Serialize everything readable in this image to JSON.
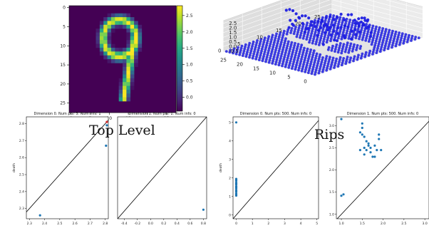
{
  "captions": {
    "left": "Top Level",
    "right": "Rips"
  },
  "heatmap": {
    "type": "heatmap",
    "xticks": [
      "0",
      "5",
      "10",
      "15",
      "20",
      "25"
    ],
    "yticks": [
      "0",
      "5",
      "10",
      "15",
      "20",
      "25"
    ],
    "colorbar_ticks": [
      "2.5",
      "2.0",
      "1.5",
      "1.0",
      "0.5",
      "0.0",
      "-0.5"
    ],
    "colorbar_values": [
      2.5,
      2.0,
      1.5,
      1.0,
      0.5,
      0.0,
      -0.5
    ],
    "vmin": -0.42,
    "vmax": 2.8,
    "background_value": -0.42,
    "grid_size": 28,
    "colormap": "viridis"
  },
  "scatter3d": {
    "type": "scatter",
    "x_ticks": [
      "0",
      "5",
      "10",
      "15",
      "20",
      "25"
    ],
    "y_ticks": [
      "0",
      "5",
      "10",
      "15",
      "20",
      "25"
    ],
    "z_ticks": [
      "2.5",
      "2.0",
      "1.5",
      "1.0",
      "0.5",
      "0.0",
      "-0.5"
    ],
    "point_color": "#1f1fe0"
  },
  "chart_data": [
    {
      "type": "scatter",
      "title": "Dimension 0. Num pts: 3. Num infs: 1",
      "ylabel": "death",
      "xticks": [
        "2.3",
        "2.4",
        "2.5",
        "2.6",
        "2.7",
        "2.8"
      ],
      "yticks": [
        "2.8",
        "2.7",
        "2.6",
        "2.5",
        "2.4",
        "2.3"
      ],
      "xlim": [
        2.28,
        2.82
      ],
      "ylim": [
        2.24,
        2.84
      ],
      "points": [
        [
          2.37,
          2.26
        ],
        [
          2.805,
          2.67
        ],
        [
          2.81,
          2.79
        ]
      ],
      "infinite_points": [
        [
          2.81,
          2.81
        ]
      ],
      "point_color": "#1f77b4",
      "inf_color": "#d62728"
    },
    {
      "type": "scatter",
      "title": "Dimension 1. Num pts: 1. Num infs: 0",
      "xticks": [
        "-0.4",
        "-0.2",
        "0.0",
        "0.2",
        "0.4",
        "0.6",
        "0.8"
      ],
      "xlim": [
        -0.5,
        0.85
      ],
      "ylim": [
        -0.5,
        0.85
      ],
      "points": [
        [
          0.8,
          -0.38
        ]
      ],
      "point_color": "#1f77b4"
    },
    {
      "type": "scatter",
      "title": "Dimension 0. Num pts: 500. Num infs: 0",
      "ylabel": "death",
      "xticks": [
        "0",
        "1",
        "2",
        "3",
        "4",
        "5"
      ],
      "yticks": [
        "5",
        "4",
        "3",
        "2",
        "1",
        "0"
      ],
      "xlim": [
        -0.2,
        5.1
      ],
      "ylim": [
        -0.2,
        5.3
      ],
      "points": [
        [
          0,
          5.0
        ],
        [
          0,
          1.95
        ],
        [
          0,
          1.85
        ],
        [
          0,
          1.75
        ],
        [
          0,
          1.65
        ],
        [
          0,
          1.55
        ],
        [
          0,
          1.45
        ],
        [
          0,
          1.35
        ],
        [
          0,
          1.25
        ],
        [
          0,
          1.15
        ],
        [
          0,
          1.05
        ],
        [
          0,
          1.9
        ],
        [
          0,
          1.7
        ],
        [
          0,
          1.5
        ],
        [
          0,
          1.3
        ],
        [
          0,
          1.1
        ]
      ],
      "point_color": "#1f77b4"
    },
    {
      "type": "scatter",
      "title": "Dimension 1. Num pts: 500. Num infs: 0",
      "xticks": [
        "1.0",
        "1.5",
        "2.0",
        "2.5",
        "3.0"
      ],
      "yticks": [
        "3.0",
        "2.5",
        "2.0",
        "1.5",
        "1.0"
      ],
      "xlim": [
        0.88,
        3.1
      ],
      "ylim": [
        0.9,
        3.2
      ],
      "points": [
        [
          1.0,
          3.15
        ],
        [
          1.0,
          1.42
        ],
        [
          1.05,
          1.45
        ],
        [
          1.5,
          2.95
        ],
        [
          1.45,
          2.85
        ],
        [
          1.5,
          2.8
        ],
        [
          1.55,
          2.75
        ],
        [
          1.6,
          2.65
        ],
        [
          1.65,
          2.55
        ],
        [
          1.55,
          2.5
        ],
        [
          1.45,
          2.45
        ],
        [
          1.6,
          2.45
        ],
        [
          1.7,
          2.5
        ],
        [
          1.8,
          2.55
        ],
        [
          1.85,
          2.45
        ],
        [
          1.75,
          2.3
        ],
        [
          1.8,
          2.3
        ],
        [
          1.9,
          2.8
        ],
        [
          1.9,
          2.7
        ],
        [
          1.95,
          2.45
        ],
        [
          1.55,
          2.35
        ],
        [
          1.5,
          3.05
        ],
        [
          1.65,
          2.6
        ],
        [
          1.7,
          2.4
        ]
      ],
      "point_color": "#1f77b4"
    }
  ]
}
